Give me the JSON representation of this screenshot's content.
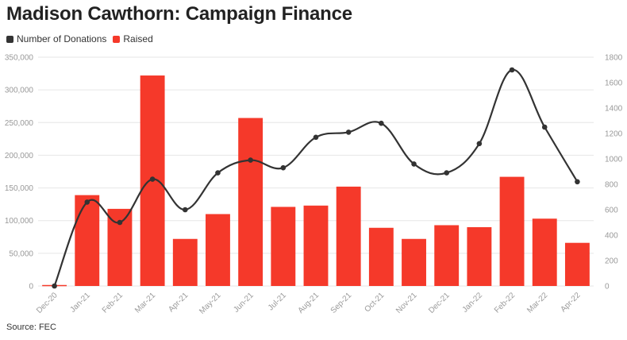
{
  "title": "Madison Cawthorn: Campaign Finance",
  "legend": {
    "line_label": "Number of Donations",
    "bar_label": "Raised"
  },
  "source": "Source: FEC",
  "colors": {
    "bar": "#f5392a",
    "line": "#333333",
    "grid": "#e6e6e6"
  },
  "chart_data": {
    "type": "bar+line",
    "categories": [
      "Dec-20",
      "Jan-21",
      "Feb-21",
      "Mar-21",
      "Apr-21",
      "May-21",
      "Jun-21",
      "Jul-21",
      "Aug-21",
      "Sep-21",
      "Oct-21",
      "Nov-21",
      "Dec-21",
      "Jan-22",
      "Feb-22",
      "Mar-22",
      "Apr-22"
    ],
    "series": [
      {
        "name": "Raised",
        "type": "bar",
        "axis": "left",
        "values": [
          1500,
          139000,
          118000,
          322000,
          72000,
          110000,
          257000,
          121000,
          123000,
          152000,
          89000,
          72000,
          93000,
          90000,
          167000,
          103000,
          66000
        ]
      },
      {
        "name": "Number of Donations",
        "type": "line",
        "axis": "right",
        "values": [
          0,
          660,
          500,
          840,
          600,
          890,
          990,
          930,
          1170,
          1210,
          1280,
          960,
          890,
          1120,
          1700,
          1250,
          820
        ]
      }
    ],
    "y_left": {
      "min": 0,
      "max": 350000,
      "ticks": [
        "0",
        "50,000",
        "100,000",
        "150,000",
        "200,000",
        "250,000",
        "300,000",
        "350,000"
      ]
    },
    "y_right": {
      "min": 0,
      "max": 1800,
      "ticks": [
        "0",
        "200",
        "400",
        "600",
        "800",
        "1000",
        "1200",
        "1400",
        "1600",
        "1800"
      ]
    },
    "grid": true
  }
}
